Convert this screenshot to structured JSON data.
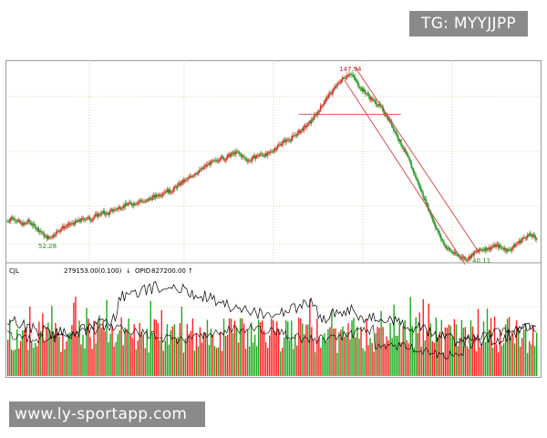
{
  "badges": {
    "telegram": "TG: MYYJJPP",
    "website": "www.ly-sportapp.com"
  },
  "chart_data": {
    "type": "line",
    "price_panel": {
      "annotations": {
        "high": "147.94",
        "low_left": "52.28",
        "low_right": "40.11"
      },
      "series": [
        {
          "values": [
            62,
            64,
            63,
            61,
            60,
            62,
            60,
            58,
            56,
            53,
            52.28,
            54,
            56,
            58,
            59,
            60,
            61,
            62,
            63,
            64,
            63,
            65,
            66,
            67,
            66,
            68,
            69,
            70,
            71,
            72,
            72,
            73,
            74,
            73,
            75,
            76,
            77,
            78,
            80,
            79,
            81,
            83,
            85,
            86,
            88,
            90,
            91,
            93,
            95,
            96,
            97,
            99,
            98,
            100,
            101,
            102,
            100,
            98,
            97,
            99,
            100,
            101,
            100,
            102,
            104,
            106,
            108,
            109,
            110,
            112,
            114,
            116,
            118,
            121,
            124,
            128,
            132,
            135,
            138,
            141,
            144,
            146,
            147.94,
            145,
            141,
            138,
            136,
            133,
            131,
            129,
            126,
            122,
            118,
            113,
            108,
            103,
            98,
            92,
            86,
            80,
            74,
            68,
            62,
            56,
            51,
            47,
            45,
            43,
            42,
            41,
            40.11,
            42,
            44,
            45,
            46,
            46,
            47,
            48,
            47,
            46,
            45,
            47,
            49,
            51,
            53,
            54,
            53,
            52
          ]
        }
      ],
      "channel": true,
      "ylim": [
        40,
        150
      ]
    },
    "volume_panel": {
      "labels": {
        "name": "CJL",
        "value": "279153.00(0.100)",
        "trend": "↓",
        "opid_label": "OPID",
        "opid_value": "827200.00",
        "opid_trend": "↑"
      },
      "colors": {
        "up": "#ff2020",
        "down": "#1aa81a",
        "line": "#000000"
      }
    },
    "grid": true
  }
}
